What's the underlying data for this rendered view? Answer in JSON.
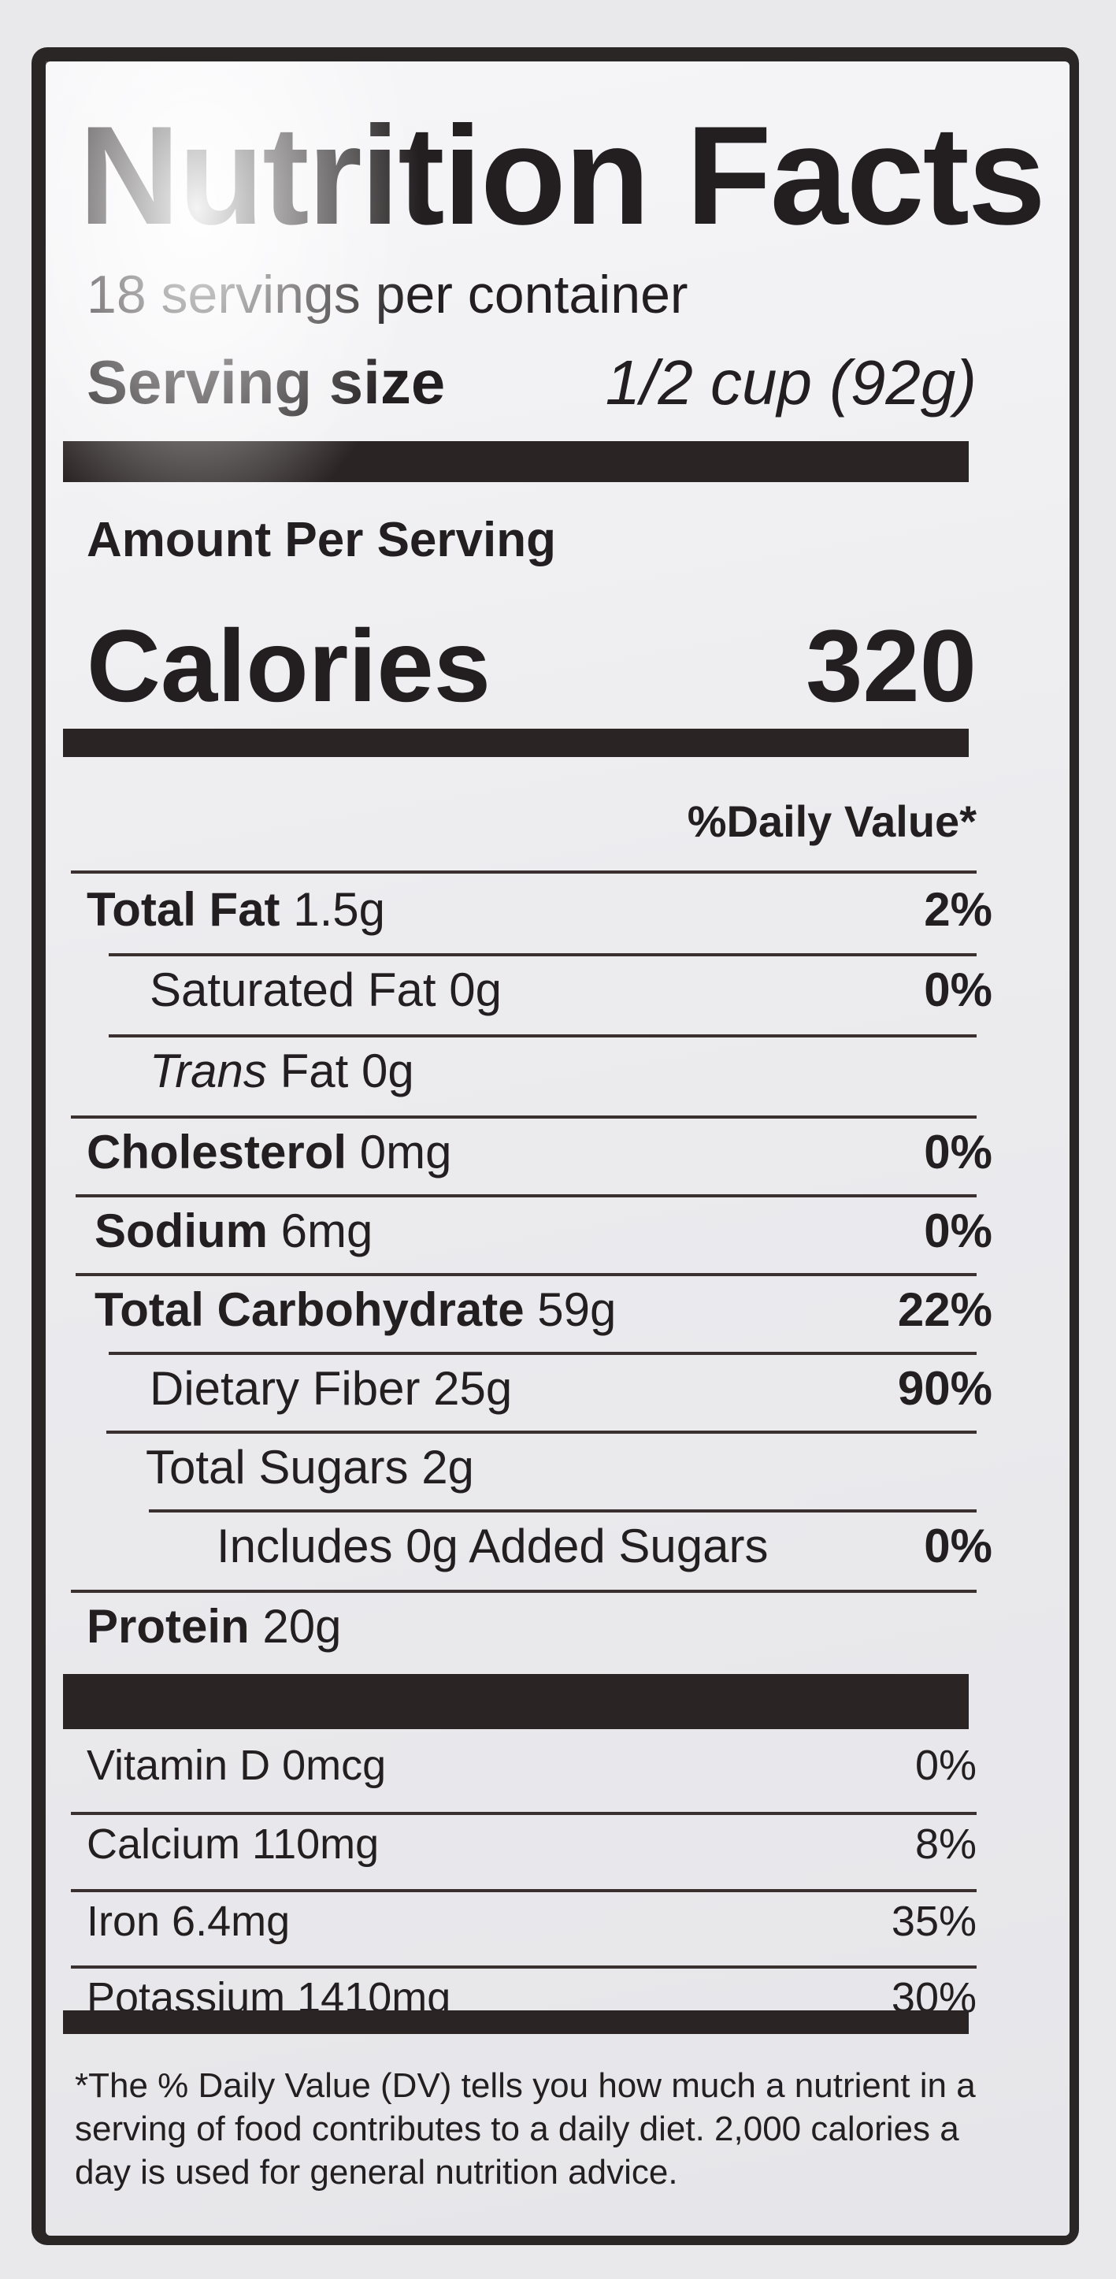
{
  "title": "Nutrition Facts",
  "servings_per_container": "18 servings per container",
  "serving_size": {
    "label": "Serving size",
    "value": "1/2 cup (92g)"
  },
  "amount_per_serving": "Amount Per Serving",
  "calories": {
    "label": "Calories",
    "value": "320"
  },
  "daily_value_header": "%Daily Value*",
  "nutrients": [
    {
      "name": "Total Fat",
      "amount": "1.5g",
      "dv": "2%"
    },
    {
      "name": "Saturated Fat",
      "amount": "0g",
      "dv": "0%"
    },
    {
      "name": "Trans",
      "name_suffix": "Fat",
      "amount": "0g",
      "dv": ""
    },
    {
      "name": "Cholesterol",
      "amount": "0mg",
      "dv": "0%"
    },
    {
      "name": "Sodium",
      "amount": "6mg",
      "dv": "0%"
    },
    {
      "name": "Total Carbohydrate",
      "amount": "59g",
      "dv": "22%"
    },
    {
      "name": "Dietary Fiber",
      "amount": "25g",
      "dv": "90%"
    },
    {
      "name": "Total Sugars",
      "amount": "2g",
      "dv": ""
    },
    {
      "name": "Includes 0g Added Sugars",
      "amount": "",
      "dv": "0%"
    },
    {
      "name": "Protein",
      "amount": "20g",
      "dv": ""
    }
  ],
  "vitamins": [
    {
      "name": "Vitamin D 0mcg",
      "dv": "0%"
    },
    {
      "name": "Calcium 110mg",
      "dv": "8%"
    },
    {
      "name": "Iron 6.4mg",
      "dv": "35%"
    },
    {
      "name": "Potassium 1410mg",
      "dv": "30%"
    }
  ],
  "footnote": "*The % Daily Value (DV) tells you how much a nutrient in a serving of food contributes to a daily diet. 2,000 calories a day is used for general nutrition advice."
}
